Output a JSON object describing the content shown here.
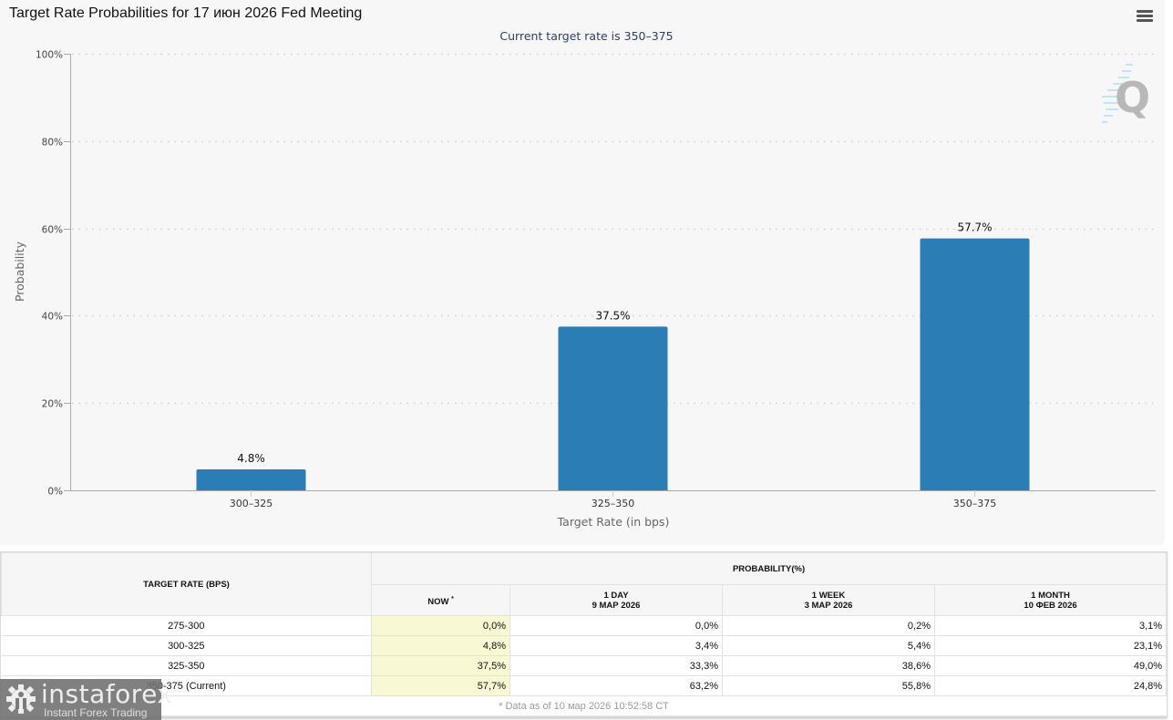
{
  "chart": {
    "title": "Target Rate Probabilities for 17 июн 2026 Fed Meeting",
    "subtitle": "Current target rate is 350–375",
    "menu_icon": "hamburger-menu-icon",
    "watermark_icon": "q-watermark-icon"
  },
  "chart_data": {
    "type": "bar",
    "title": "Target Rate Probabilities for 17 июн 2026 Fed Meeting",
    "subtitle": "Current target rate is 350–375",
    "categories": [
      "300–325",
      "325–350",
      "350–375"
    ],
    "values": [
      4.8,
      37.5,
      57.7
    ],
    "data_labels": [
      "4.8%",
      "37.5%",
      "57.7%"
    ],
    "xlabel": "Target Rate (in bps)",
    "ylabel": "Probability",
    "ylim": [
      0,
      100
    ],
    "yticks": [
      0,
      20,
      40,
      60,
      80,
      100
    ],
    "ytick_labels": [
      "0%",
      "20%",
      "40%",
      "60%",
      "80%",
      "100%"
    ],
    "grid": true,
    "legend": "none",
    "bar_color": "#2a7db5"
  },
  "table": {
    "header_rate": "TARGET RATE (BPS)",
    "header_probability": "PROBABILITY(%)",
    "columns": [
      {
        "line1": "NOW",
        "line2": "",
        "sup": "*"
      },
      {
        "line1": "1 DAY",
        "line2": "9 МАР 2026"
      },
      {
        "line1": "1 WEEK",
        "line2": "3 МАР 2026"
      },
      {
        "line1": "1 MONTH",
        "line2": "10 ФЕВ 2026"
      }
    ],
    "rows": [
      {
        "rate": "275-300",
        "values": [
          "0,0%",
          "0,0%",
          "0,2%",
          "3,1%"
        ]
      },
      {
        "rate": "300-325",
        "values": [
          "4,8%",
          "3,4%",
          "5,4%",
          "23,1%"
        ]
      },
      {
        "rate": "325-350",
        "values": [
          "37,5%",
          "33,3%",
          "38,6%",
          "49,0%"
        ]
      },
      {
        "rate": "350-375 (Current)",
        "values": [
          "57,7%",
          "63,2%",
          "55,8%",
          "24,8%"
        ]
      }
    ],
    "footer": "* Data as of 10 мар 2026 10:52:58 CT",
    "now_highlight_color": "#f8f8d4"
  },
  "logo": {
    "name": "instaforex",
    "tagline": "Instant Forex Trading"
  }
}
